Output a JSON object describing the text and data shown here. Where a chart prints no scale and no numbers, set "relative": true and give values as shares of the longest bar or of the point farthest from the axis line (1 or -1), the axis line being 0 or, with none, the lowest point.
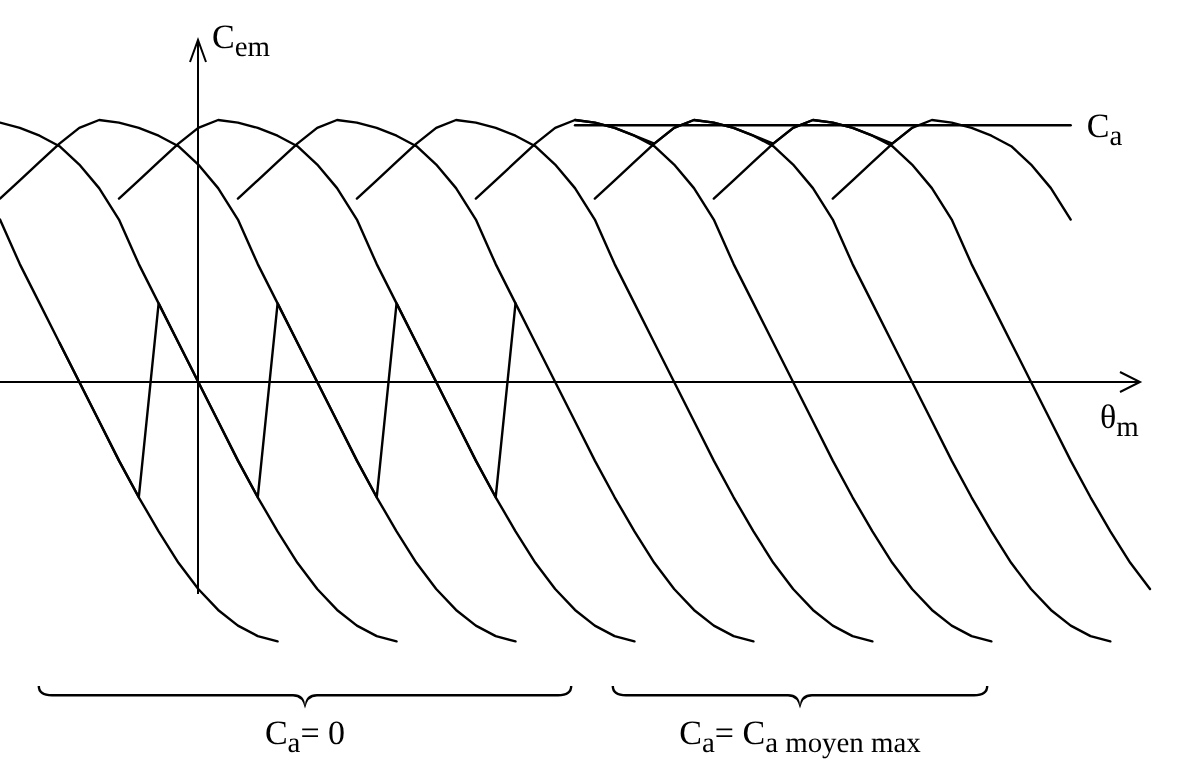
{
  "chart_data": {
    "type": "line",
    "relative": true,
    "xlabel": "θ$_{m}$",
    "ylabel": "C$_{em}$",
    "categories": [
      null,
      null,
      null,
      null,
      null,
      null,
      null,
      null,
      null,
      null,
      null,
      null,
      null,
      null,
      null,
      null,
      null,
      null,
      null,
      null,
      null,
      null,
      null,
      null,
      null,
      null,
      null,
      null,
      null,
      null,
      null,
      null,
      null,
      null,
      null,
      null,
      null,
      null,
      null,
      null,
      null,
      null,
      null,
      null,
      null,
      null,
      null,
      null,
      null,
      null,
      null,
      null,
      null,
      null,
      null,
      null,
      null,
      null,
      null
    ],
    "annotations": [
      "C$_{a}$= 0",
      "C$_{a}$= C$_{a moyen max}$"
    ],
    "legend": false,
    "marker": "none",
    "line_style": "solid",
    "grid": false,
    "series": [
      {
        "color": "#000000",
        "values": [
          0.62,
          0.45,
          0.3,
          0.15,
          0,
          -0.15,
          -0.3,
          -0.44,
          -0.57,
          -0.69,
          -0.79,
          -0.87,
          -0.93,
          -0.97,
          -0.99,
          null,
          null,
          null,
          null,
          null,
          null,
          null,
          null,
          null,
          null,
          null,
          null,
          null,
          null,
          null,
          null,
          null,
          null,
          null,
          null,
          null,
          null,
          null,
          null,
          null,
          null,
          null,
          null,
          null,
          null,
          null,
          null,
          null,
          null,
          null,
          null,
          null,
          null,
          null,
          null,
          null,
          null,
          null,
          null
        ]
      },
      {
        "color": "#000000",
        "values": [
          0.99,
          0.97,
          0.94,
          0.9,
          0.83,
          0.74,
          0.62,
          0.45,
          0.3,
          0.15,
          0,
          -0.15,
          -0.3,
          -0.44,
          -0.57,
          -0.69,
          -0.79,
          -0.87,
          -0.93,
          -0.97,
          -0.99,
          null,
          null,
          null,
          null,
          null,
          null,
          null,
          null,
          null,
          null,
          null,
          null,
          null,
          null,
          null,
          null,
          null,
          null,
          null,
          null,
          null,
          null,
          null,
          null,
          null,
          null,
          null,
          null,
          null,
          null,
          null,
          null,
          null,
          null,
          null,
          null,
          null,
          null
        ]
      },
      {
        "color": "#000000",
        "values": [
          0.7,
          0.77,
          0.84,
          0.91,
          0.97,
          1,
          0.99,
          0.97,
          0.94,
          0.9,
          0.83,
          0.74,
          0.62,
          0.45,
          0.3,
          0.15,
          0,
          -0.15,
          -0.3,
          -0.44,
          -0.57,
          -0.69,
          -0.79,
          -0.87,
          -0.93,
          -0.97,
          -0.99,
          null,
          null,
          null,
          null,
          null,
          null,
          null,
          null,
          null,
          null,
          null,
          null,
          null,
          null,
          null,
          null,
          null,
          null,
          null,
          null,
          null,
          null,
          null,
          null,
          null,
          null,
          null,
          null,
          null,
          null,
          null,
          null
        ]
      },
      {
        "color": "#000000",
        "values": [
          null,
          null,
          null,
          null,
          null,
          null,
          0.7,
          0.77,
          0.84,
          0.91,
          0.97,
          1,
          0.99,
          0.97,
          0.94,
          0.9,
          0.83,
          0.74,
          0.62,
          0.45,
          0.3,
          0.15,
          0,
          -0.15,
          -0.3,
          -0.44,
          -0.57,
          -0.69,
          -0.79,
          -0.87,
          -0.93,
          -0.97,
          -0.99,
          null,
          null,
          null,
          null,
          null,
          null,
          null,
          null,
          null,
          null,
          null,
          null,
          null,
          null,
          null,
          null,
          null,
          null,
          null,
          null,
          null,
          null,
          null,
          null,
          null,
          null
        ]
      },
      {
        "color": "#000000",
        "values": [
          null,
          null,
          null,
          null,
          null,
          null,
          null,
          null,
          null,
          null,
          null,
          null,
          0.7,
          0.77,
          0.84,
          0.91,
          0.97,
          1,
          0.99,
          0.97,
          0.94,
          0.9,
          0.83,
          0.74,
          0.62,
          0.45,
          0.3,
          0.15,
          0,
          -0.15,
          -0.3,
          -0.44,
          -0.57,
          -0.69,
          -0.79,
          -0.87,
          -0.93,
          -0.97,
          -0.99,
          null,
          null,
          null,
          null,
          null,
          null,
          null,
          null,
          null,
          null,
          null,
          null,
          null,
          null,
          null,
          null,
          null,
          null,
          null,
          null
        ]
      },
      {
        "color": "#000000",
        "values": [
          null,
          null,
          null,
          null,
          null,
          null,
          null,
          null,
          null,
          null,
          null,
          null,
          null,
          null,
          null,
          null,
          null,
          null,
          0.7,
          0.77,
          0.84,
          0.91,
          0.97,
          1,
          0.99,
          0.97,
          0.94,
          0.9,
          0.83,
          0.74,
          0.62,
          0.45,
          0.3,
          0.15,
          0,
          -0.15,
          -0.3,
          -0.44,
          -0.57,
          -0.69,
          -0.79,
          -0.87,
          -0.93,
          -0.97,
          -0.99,
          null,
          null,
          null,
          null,
          null,
          null,
          null,
          null,
          null,
          null,
          null,
          null,
          null,
          null
        ]
      },
      {
        "color": "#000000",
        "values": [
          null,
          null,
          null,
          null,
          null,
          null,
          null,
          null,
          null,
          null,
          null,
          null,
          null,
          null,
          null,
          null,
          null,
          null,
          null,
          null,
          null,
          null,
          null,
          null,
          0.7,
          0.77,
          0.84,
          0.91,
          0.97,
          1,
          0.99,
          0.97,
          0.94,
          0.9,
          0.83,
          0.74,
          0.62,
          0.45,
          0.3,
          0.15,
          0,
          -0.15,
          -0.3,
          -0.44,
          -0.57,
          -0.69,
          -0.79,
          -0.87,
          -0.93,
          -0.97,
          -0.99,
          null,
          null,
          null,
          null,
          null,
          null,
          null,
          null
        ]
      },
      {
        "color": "#000000",
        "values": [
          null,
          null,
          null,
          null,
          null,
          null,
          null,
          null,
          null,
          null,
          null,
          null,
          null,
          null,
          null,
          null,
          null,
          null,
          null,
          null,
          null,
          null,
          null,
          null,
          null,
          null,
          null,
          null,
          null,
          null,
          0.7,
          0.77,
          0.84,
          0.91,
          0.97,
          1,
          0.99,
          0.97,
          0.94,
          0.9,
          0.83,
          0.74,
          0.62,
          0.45,
          0.3,
          0.15,
          0,
          -0.15,
          -0.3,
          -0.44,
          -0.57,
          -0.69,
          -0.79,
          -0.87,
          -0.93,
          -0.97,
          -0.99,
          null,
          null
        ]
      },
      {
        "color": "#000000",
        "values": [
          null,
          null,
          null,
          null,
          null,
          null,
          null,
          null,
          null,
          null,
          null,
          null,
          null,
          null,
          null,
          null,
          null,
          null,
          null,
          null,
          null,
          null,
          null,
          null,
          null,
          null,
          null,
          null,
          null,
          null,
          null,
          null,
          null,
          null,
          null,
          null,
          0.7,
          0.77,
          0.84,
          0.91,
          0.97,
          1,
          0.99,
          0.97,
          0.94,
          0.9,
          0.83,
          0.74,
          0.62,
          0.45,
          0.3,
          0.15,
          0,
          -0.15,
          -0.3,
          -0.44,
          -0.57,
          -0.69,
          -0.79
        ]
      },
      {
        "color": "#000000",
        "values": [
          null,
          null,
          null,
          null,
          null,
          null,
          null,
          null,
          null,
          null,
          null,
          null,
          null,
          null,
          null,
          null,
          null,
          null,
          null,
          null,
          null,
          null,
          null,
          null,
          null,
          null,
          null,
          null,
          null,
          null,
          null,
          null,
          null,
          null,
          null,
          null,
          null,
          null,
          null,
          null,
          null,
          null,
          0.7,
          0.77,
          0.84,
          0.91,
          0.97,
          1,
          0.99,
          0.97,
          0.94,
          0.9,
          0.83,
          0.74,
          0.62,
          null,
          null,
          null,
          null
        ]
      },
      {
        "color": "#000000",
        "values": [
          null,
          null,
          null,
          0.15,
          0,
          -0.15,
          -0.3,
          -0.44,
          0.3,
          0.15,
          0,
          -0.15,
          -0.3,
          -0.44,
          0.3,
          0.15,
          0,
          -0.15,
          -0.3,
          -0.44,
          0.3,
          0.15,
          0,
          -0.15,
          -0.3,
          -0.44,
          0.3,
          null,
          null,
          null,
          null,
          null,
          null,
          null,
          null,
          null,
          null,
          null,
          null,
          null,
          null,
          null,
          null,
          null,
          null,
          null,
          null,
          null,
          null,
          null,
          null,
          null,
          null,
          null,
          null,
          null,
          null,
          null,
          null
        ]
      },
      {
        "color": "#000000",
        "values": [
          null,
          null,
          null,
          null,
          null,
          null,
          null,
          null,
          null,
          null,
          null,
          null,
          null,
          null,
          null,
          null,
          null,
          null,
          null,
          null,
          null,
          null,
          null,
          null,
          null,
          null,
          null,
          null,
          null,
          1,
          0.99,
          0.97,
          0.94,
          0.91,
          0.97,
          1,
          0.99,
          0.97,
          0.94,
          0.91,
          0.97,
          1,
          0.99,
          0.97,
          0.94,
          0.91,
          0.97,
          null,
          null,
          null,
          null,
          null,
          null,
          null,
          null,
          null,
          null,
          null,
          null
        ]
      },
      {
        "name": "C$_{a}$",
        "color": "#000000",
        "values": [
          null,
          null,
          null,
          null,
          null,
          null,
          null,
          null,
          null,
          null,
          null,
          null,
          null,
          null,
          null,
          null,
          null,
          null,
          null,
          null,
          null,
          null,
          null,
          null,
          null,
          null,
          null,
          null,
          null,
          0.98,
          0.98,
          0.98,
          0.98,
          0.98,
          0.98,
          0.98,
          0.98,
          0.98,
          0.98,
          0.98,
          0.98,
          0.98,
          0.98,
          0.98,
          0.98,
          0.98,
          0.98,
          0.98,
          0.98,
          0.98,
          0.98,
          0.98,
          0.98,
          0.98,
          0.98,
          null,
          null,
          null,
          null
        ]
      }
    ]
  }
}
